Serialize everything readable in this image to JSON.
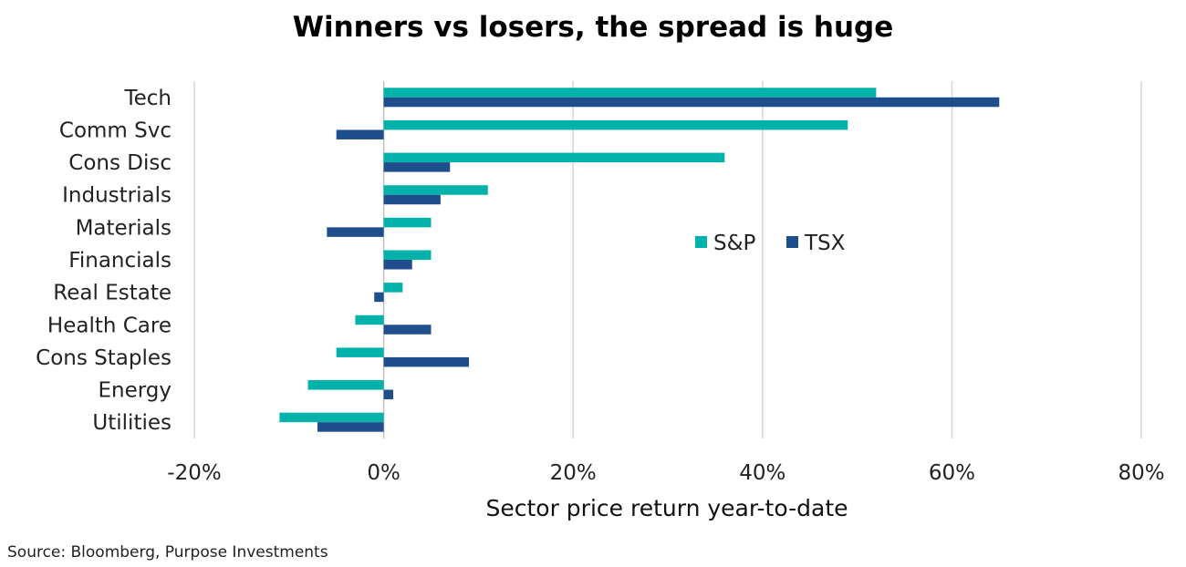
{
  "chart_data": {
    "type": "bar",
    "orientation": "horizontal",
    "title": "Winners vs losers, the spread is huge",
    "xlabel": "Sector price return year-to-date",
    "ylabel": "",
    "categories": [
      "Tech",
      "Comm Svc",
      "Cons Disc",
      "Industrials",
      "Materials",
      "Financials",
      "Real Estate",
      "Health Care",
      "Cons Staples",
      "Energy",
      "Utilities"
    ],
    "series": [
      {
        "name": "S&P",
        "color": "#00b2a9",
        "values": [
          52,
          49,
          36,
          11,
          5,
          5,
          2,
          -3,
          -5,
          -8,
          -11
        ]
      },
      {
        "name": "TSX",
        "color": "#1f4e8c",
        "values": [
          65,
          -5,
          7,
          6,
          -6,
          3,
          -1,
          5,
          9,
          1,
          -7
        ]
      }
    ],
    "xlim": [
      -20,
      80
    ],
    "xticks": [
      -20,
      0,
      20,
      40,
      60,
      80
    ],
    "xtick_labels": [
      "-20%",
      "0%",
      "20%",
      "40%",
      "60%",
      "80%"
    ],
    "grid": true,
    "legend_position": "center-right"
  },
  "source": "Source: Bloomberg, Purpose Investments"
}
